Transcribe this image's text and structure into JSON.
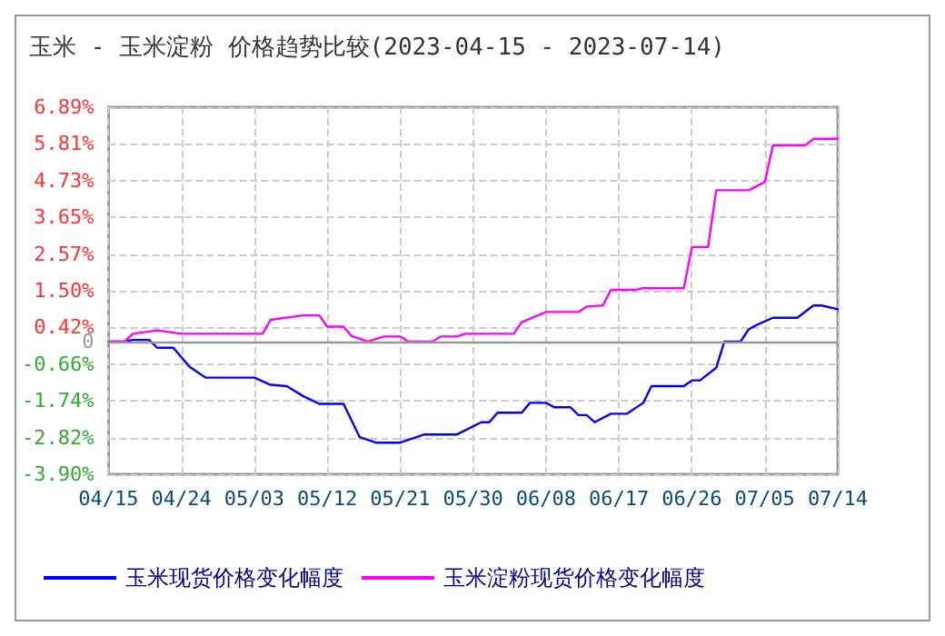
{
  "chart_data": {
    "type": "line",
    "title": "玉米 - 玉米淀粉 价格趋势比较(2023-04-15 - 2023-07-14)",
    "xlim": [
      "2023-04-15",
      "2023-07-14"
    ],
    "xticks": [
      {
        "value": "2023-04-15",
        "label": "04/15"
      },
      {
        "value": "2023-04-24",
        "label": "04/24"
      },
      {
        "value": "2023-05-03",
        "label": "05/03"
      },
      {
        "value": "2023-05-12",
        "label": "05/12"
      },
      {
        "value": "2023-05-21",
        "label": "05/21"
      },
      {
        "value": "2023-05-30",
        "label": "05/30"
      },
      {
        "value": "2023-06-08",
        "label": "06/08"
      },
      {
        "value": "2023-06-17",
        "label": "06/17"
      },
      {
        "value": "2023-06-26",
        "label": "06/26"
      },
      {
        "value": "2023-07-05",
        "label": "07/05"
      },
      {
        "value": "2023-07-14",
        "label": "07/14"
      }
    ],
    "ylim": [
      -3.9,
      6.89
    ],
    "yticks": [
      {
        "value": -3.9,
        "label": "-3.90%"
      },
      {
        "value": -2.82,
        "label": "-2.82%"
      },
      {
        "value": -1.74,
        "label": "-1.74%"
      },
      {
        "value": -0.66,
        "label": "-0.66%"
      },
      0,
      {
        "value": 0.42,
        "label": "0.42%"
      },
      {
        "value": 1.5,
        "label": "1.50%"
      },
      {
        "value": 2.57,
        "label": "2.57%"
      },
      {
        "value": 3.65,
        "label": "3.65%"
      },
      {
        "value": 4.73,
        "label": "4.73%"
      },
      {
        "value": 5.81,
        "label": "5.81%"
      },
      {
        "value": 6.89,
        "label": "6.89%"
      }
    ],
    "grid": true,
    "legend": "bottom",
    "marker": "none",
    "line_style": "solid",
    "ref_lines": [
      {
        "axis": "y",
        "value": 0,
        "color": "#999999",
        "line_style": "solid"
      }
    ],
    "series": [
      {
        "name": "玉米现货价格变化幅度",
        "color": "#0000ff",
        "x": [
          "2023-04-15",
          "2023-04-17",
          "2023-04-18",
          "2023-04-20",
          "2023-04-21",
          "2023-04-23",
          "2023-04-25",
          "2023-04-27",
          "2023-05-03",
          "2023-05-05",
          "2023-05-07",
          "2023-05-09",
          "2023-05-11",
          "2023-05-14",
          "2023-05-16",
          "2023-05-18",
          "2023-05-21",
          "2023-05-24",
          "2023-05-28",
          "2023-05-31",
          "2023-06-01",
          "2023-06-02",
          "2023-06-05",
          "2023-06-06",
          "2023-06-08",
          "2023-06-09",
          "2023-06-11",
          "2023-06-12",
          "2023-06-13",
          "2023-06-14",
          "2023-06-16",
          "2023-06-18",
          "2023-06-20",
          "2023-06-21",
          "2023-06-25",
          "2023-06-26",
          "2023-06-27",
          "2023-06-29",
          "2023-06-30",
          "2023-07-02",
          "2023-07-03",
          "2023-07-04",
          "2023-07-06",
          "2023-07-09",
          "2023-07-11",
          "2023-07-12",
          "2023-07-14"
        ],
        "values": [
          0,
          0,
          0.05,
          0.05,
          -0.18,
          -0.18,
          -0.74,
          -1.06,
          -1.06,
          -1.27,
          -1.31,
          -1.6,
          -1.83,
          -1.83,
          -2.81,
          -2.97,
          -2.97,
          -2.73,
          -2.73,
          -2.37,
          -2.37,
          -2.09,
          -2.09,
          -1.8,
          -1.8,
          -1.93,
          -1.93,
          -2.16,
          -2.16,
          -2.37,
          -2.12,
          -2.12,
          -1.8,
          -1.31,
          -1.31,
          -1.14,
          -1.14,
          -0.77,
          0,
          0,
          0.36,
          0.49,
          0.7,
          0.7,
          1.06,
          1.06,
          0.95
        ]
      },
      {
        "name": "玉米淀粉现货价格变化幅度",
        "color": "#ff00ff",
        "x": [
          "2023-04-15",
          "2023-04-17",
          "2023-04-18",
          "2023-04-21",
          "2023-04-24",
          "2023-05-04",
          "2023-05-05",
          "2023-05-09",
          "2023-05-11",
          "2023-05-12",
          "2023-05-14",
          "2023-05-15",
          "2023-05-17",
          "2023-05-19",
          "2023-05-21",
          "2023-05-22",
          "2023-05-25",
          "2023-05-26",
          "2023-05-28",
          "2023-05-29",
          "2023-06-04",
          "2023-06-05",
          "2023-06-07",
          "2023-06-08",
          "2023-06-12",
          "2023-06-13",
          "2023-06-15",
          "2023-06-16",
          "2023-06-19",
          "2023-06-20",
          "2023-06-25",
          "2023-06-26",
          "2023-06-28",
          "2023-06-29",
          "2023-07-03",
          "2023-07-05",
          "2023-07-06",
          "2023-07-10",
          "2023-07-11",
          "2023-07-14"
        ],
        "values": [
          0,
          0,
          0.23,
          0.33,
          0.23,
          0.23,
          0.64,
          0.77,
          0.77,
          0.44,
          0.44,
          0.16,
          0,
          0.15,
          0.15,
          0,
          0,
          0.15,
          0.15,
          0.23,
          0.23,
          0.57,
          0.77,
          0.87,
          0.87,
          1.03,
          1.06,
          1.52,
          1.52,
          1.57,
          1.57,
          2.78,
          2.78,
          4.45,
          4.45,
          4.69,
          5.77,
          5.77,
          5.96,
          5.96
        ]
      }
    ]
  }
}
